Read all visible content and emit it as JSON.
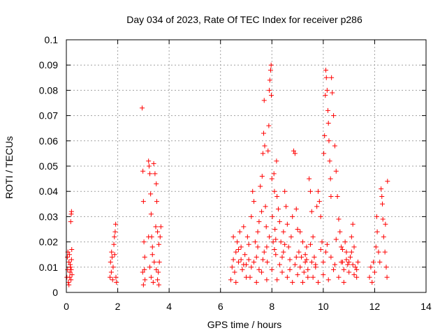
{
  "chart_data": {
    "type": "scatter",
    "title": "Day 034 of 2023, Rate Of TEC Index for receiver p286",
    "xlabel": "GPS time / hours",
    "ylabel": "ROTI / TECUs",
    "xlim": [
      0,
      14
    ],
    "ylim": [
      0,
      0.1
    ],
    "xticks": [
      0,
      2,
      4,
      6,
      8,
      10,
      12,
      14
    ],
    "xtick_labels": [
      "0",
      "2",
      "4",
      "6",
      "8",
      "10",
      "12",
      "14"
    ],
    "yticks": [
      0,
      0.01,
      0.02,
      0.03,
      0.04,
      0.05,
      0.06,
      0.07,
      0.08,
      0.09,
      0.1
    ],
    "ytick_labels": [
      "0",
      "0.01",
      "0.02",
      "0.03",
      "0.04",
      "0.05",
      "0.06",
      "0.07",
      "0.08",
      "0.09",
      "0.1"
    ],
    "grid": true,
    "legend": "none",
    "marker": "plus",
    "color": "#ff0000",
    "series": [
      {
        "points": [
          [
            0.02,
            0.006
          ],
          [
            0.05,
            0.009
          ],
          [
            0.08,
            0.004
          ],
          [
            0.1,
            0.012
          ],
          [
            0.12,
            0.015
          ],
          [
            0.14,
            0.008
          ],
          [
            0.16,
            0.01
          ],
          [
            0.18,
            0.005
          ],
          [
            0.2,
            0.013
          ],
          [
            0.22,
            0.007
          ],
          [
            0.06,
            0.016
          ],
          [
            0.1,
            0.003
          ],
          [
            0.15,
            0.011
          ],
          [
            0.19,
            0.009
          ],
          [
            0.13,
            0.006
          ],
          [
            0.17,
            0.028
          ],
          [
            0.19,
            0.031
          ],
          [
            0.2,
            0.032
          ],
          [
            0.04,
            0.014
          ],
          [
            0.21,
            0.017
          ],
          [
            1.7,
            0.006
          ],
          [
            1.72,
            0.012
          ],
          [
            1.75,
            0.008
          ],
          [
            1.78,
            0.014
          ],
          [
            1.8,
            0.005
          ],
          [
            1.82,
            0.01
          ],
          [
            1.85,
            0.019
          ],
          [
            1.87,
            0.022
          ],
          [
            1.9,
            0.024
          ],
          [
            1.92,
            0.027
          ],
          [
            1.88,
            0.015
          ],
          [
            1.93,
            0.006
          ],
          [
            1.95,
            0.004
          ],
          [
            1.76,
            0.016
          ],
          [
            2.95,
            0.073
          ],
          [
            2.98,
            0.048
          ],
          [
            3.0,
            0.036
          ],
          [
            3.02,
            0.02
          ],
          [
            3.04,
            0.009
          ],
          [
            3.06,
            0.005
          ],
          [
            3.0,
            0.003
          ],
          [
            3.05,
            0.014
          ],
          [
            2.97,
            0.008
          ],
          [
            3.2,
            0.052
          ],
          [
            3.22,
            0.05
          ],
          [
            3.25,
            0.047
          ],
          [
            3.28,
            0.039
          ],
          [
            3.3,
            0.031
          ],
          [
            3.32,
            0.022
          ],
          [
            3.35,
            0.015
          ],
          [
            3.25,
            0.01
          ],
          [
            3.3,
            0.006
          ],
          [
            3.38,
            0.004
          ],
          [
            3.4,
            0.051
          ],
          [
            3.45,
            0.047
          ],
          [
            3.5,
            0.043
          ],
          [
            3.52,
            0.036
          ],
          [
            3.48,
            0.026
          ],
          [
            3.55,
            0.024
          ],
          [
            3.6,
            0.019
          ],
          [
            3.62,
            0.012
          ],
          [
            3.58,
            0.008
          ],
          [
            3.65,
            0.022
          ],
          [
            3.42,
            0.012
          ],
          [
            3.55,
            0.005
          ],
          [
            3.68,
            0.026
          ],
          [
            3.5,
            0.009
          ],
          [
            3.2,
            0.022
          ],
          [
            3.35,
            0.018
          ],
          [
            3.6,
            0.003
          ],
          [
            6.4,
            0.005
          ],
          [
            6.45,
            0.01
          ],
          [
            6.5,
            0.013
          ],
          [
            6.55,
            0.008
          ],
          [
            6.6,
            0.016
          ],
          [
            6.65,
            0.02
          ],
          [
            6.7,
            0.012
          ],
          [
            6.75,
            0.024
          ],
          [
            6.8,
            0.018
          ],
          [
            6.85,
            0.009
          ],
          [
            6.9,
            0.026
          ],
          [
            6.95,
            0.015
          ],
          [
            7.0,
            0.011
          ],
          [
            7.05,
            0.022
          ],
          [
            7.1,
            0.019
          ],
          [
            7.15,
            0.006
          ],
          [
            7.2,
            0.03
          ],
          [
            7.25,
            0.04
          ],
          [
            7.3,
            0.036
          ],
          [
            7.35,
            0.02
          ],
          [
            7.4,
            0.014
          ],
          [
            7.45,
            0.024
          ],
          [
            7.5,
            0.028
          ],
          [
            7.55,
            0.042
          ],
          [
            7.6,
            0.032
          ],
          [
            7.62,
            0.046
          ],
          [
            7.65,
            0.055
          ],
          [
            7.68,
            0.063
          ],
          [
            7.7,
            0.076
          ],
          [
            7.72,
            0.058
          ],
          [
            7.75,
            0.034
          ],
          [
            7.78,
            0.026
          ],
          [
            7.8,
            0.018
          ],
          [
            7.82,
            0.012
          ],
          [
            7.85,
            0.056
          ],
          [
            7.88,
            0.066
          ],
          [
            7.9,
            0.08
          ],
          [
            7.92,
            0.084
          ],
          [
            7.95,
            0.088
          ],
          [
            7.97,
            0.09
          ],
          [
            7.98,
            0.078
          ],
          [
            8.0,
            0.045
          ],
          [
            8.02,
            0.03
          ],
          [
            8.05,
            0.02
          ],
          [
            8.08,
            0.047
          ],
          [
            8.1,
            0.04
          ],
          [
            8.12,
            0.025
          ],
          [
            8.15,
            0.015
          ],
          [
            8.18,
            0.052
          ],
          [
            8.2,
            0.038
          ],
          [
            8.25,
            0.033
          ],
          [
            8.3,
            0.028
          ],
          [
            8.35,
            0.02
          ],
          [
            8.4,
            0.014
          ],
          [
            8.45,
            0.024
          ],
          [
            8.5,
            0.04
          ],
          [
            8.55,
            0.034
          ],
          [
            8.6,
            0.027
          ],
          [
            8.65,
            0.018
          ],
          [
            8.7,
            0.009
          ],
          [
            8.75,
            0.022
          ],
          [
            8.8,
            0.03
          ],
          [
            8.85,
            0.056
          ],
          [
            8.9,
            0.055
          ],
          [
            8.95,
            0.033
          ],
          [
            9.0,
            0.025
          ],
          [
            9.05,
            0.016
          ],
          [
            9.1,
            0.01
          ],
          [
            9.15,
            0.014
          ],
          [
            9.2,
            0.02
          ],
          [
            9.25,
            0.008
          ],
          [
            9.3,
            0.012
          ],
          [
            9.35,
            0.018
          ],
          [
            9.4,
            0.006
          ],
          [
            9.45,
            0.045
          ],
          [
            9.5,
            0.04
          ],
          [
            9.55,
            0.032
          ],
          [
            9.6,
            0.022
          ],
          [
            9.65,
            0.014
          ],
          [
            9.7,
            0.01
          ],
          [
            9.75,
            0.034
          ],
          [
            9.8,
            0.04
          ],
          [
            9.85,
            0.036
          ],
          [
            9.9,
            0.03
          ],
          [
            9.95,
            0.02
          ],
          [
            10.0,
            0.012
          ],
          [
            10.02,
            0.055
          ],
          [
            10.05,
            0.062
          ],
          [
            10.08,
            0.078
          ],
          [
            10.1,
            0.088
          ],
          [
            10.12,
            0.085
          ],
          [
            10.15,
            0.08
          ],
          [
            10.18,
            0.072
          ],
          [
            10.2,
            0.067
          ],
          [
            10.22,
            0.06
          ],
          [
            10.25,
            0.052
          ],
          [
            10.28,
            0.045
          ],
          [
            10.3,
            0.038
          ],
          [
            10.32,
            0.085
          ],
          [
            10.35,
            0.079
          ],
          [
            10.4,
            0.07
          ],
          [
            10.45,
            0.058
          ],
          [
            10.5,
            0.048
          ],
          [
            10.55,
            0.038
          ],
          [
            10.6,
            0.029
          ],
          [
            10.65,
            0.024
          ],
          [
            10.7,
            0.018
          ],
          [
            10.75,
            0.012
          ],
          [
            10.8,
            0.009
          ],
          [
            10.85,
            0.02
          ],
          [
            10.9,
            0.016
          ],
          [
            10.95,
            0.011
          ],
          [
            11.0,
            0.008
          ],
          [
            11.05,
            0.014
          ],
          [
            11.1,
            0.022
          ],
          [
            11.15,
            0.027
          ],
          [
            11.2,
            0.018
          ],
          [
            11.25,
            0.01
          ],
          [
            11.3,
            0.006
          ],
          [
            11.35,
            0.012
          ],
          [
            11.8,
            0.006
          ],
          [
            11.85,
            0.01
          ],
          [
            11.9,
            0.004
          ],
          [
            11.95,
            0.012
          ],
          [
            12.0,
            0.008
          ],
          [
            12.05,
            0.018
          ],
          [
            12.08,
            0.03
          ],
          [
            12.1,
            0.024
          ],
          [
            12.15,
            0.016
          ],
          [
            12.2,
            0.012
          ],
          [
            12.25,
            0.041
          ],
          [
            12.28,
            0.038
          ],
          [
            12.3,
            0.035
          ],
          [
            12.32,
            0.029
          ],
          [
            12.35,
            0.022
          ],
          [
            12.4,
            0.016
          ],
          [
            12.42,
            0.027
          ],
          [
            12.45,
            0.01
          ],
          [
            12.48,
            0.006
          ],
          [
            12.5,
            0.044
          ],
          [
            6.5,
            0.022
          ],
          [
            6.6,
            0.004
          ],
          [
            6.8,
            0.013
          ],
          [
            7.0,
            0.006
          ],
          [
            7.2,
            0.01
          ],
          [
            7.4,
            0.004
          ],
          [
            7.6,
            0.008
          ],
          [
            7.8,
            0.005
          ],
          [
            8.0,
            0.009
          ],
          [
            8.2,
            0.005
          ],
          [
            8.4,
            0.008
          ],
          [
            8.6,
            0.006
          ],
          [
            8.8,
            0.004
          ],
          [
            9.0,
            0.007
          ],
          [
            9.2,
            0.004
          ],
          [
            9.4,
            0.009
          ],
          [
            9.6,
            0.006
          ],
          [
            9.8,
            0.004
          ],
          [
            10.0,
            0.007
          ],
          [
            10.2,
            0.005
          ],
          [
            10.4,
            0.009
          ],
          [
            10.6,
            0.006
          ],
          [
            10.8,
            0.004
          ],
          [
            11.0,
            0.012
          ],
          [
            11.2,
            0.007
          ],
          [
            7.3,
            0.012
          ],
          [
            7.7,
            0.016
          ],
          [
            8.3,
            0.011
          ],
          [
            8.7,
            0.013
          ],
          [
            9.3,
            0.015
          ],
          [
            9.7,
            0.011
          ],
          [
            10.3,
            0.014
          ],
          [
            10.7,
            0.012
          ],
          [
            11.1,
            0.016
          ],
          [
            7.9,
            0.022
          ],
          [
            8.5,
            0.019
          ],
          [
            9.1,
            0.024
          ],
          [
            9.9,
            0.017
          ],
          [
            10.5,
            0.021
          ],
          [
            6.7,
            0.017
          ],
          [
            7.1,
            0.013
          ],
          [
            7.5,
            0.009
          ],
          [
            8.1,
            0.017
          ],
          [
            8.9,
            0.011
          ],
          [
            9.5,
            0.019
          ],
          [
            10.1,
            0.016
          ],
          [
            10.9,
            0.013
          ],
          [
            11.3,
            0.009
          ],
          [
            6.9,
            0.011
          ],
          [
            7.45,
            0.018
          ],
          [
            8.15,
            0.021
          ],
          [
            8.95,
            0.014
          ],
          [
            9.55,
            0.012
          ],
          [
            10.15,
            0.019
          ],
          [
            10.75,
            0.017
          ],
          [
            11.15,
            0.011
          ],
          [
            7.65,
            0.013
          ],
          [
            8.45,
            0.016
          ],
          [
            9.35,
            0.013
          ],
          [
            10.45,
            0.011
          ]
        ]
      }
    ]
  }
}
